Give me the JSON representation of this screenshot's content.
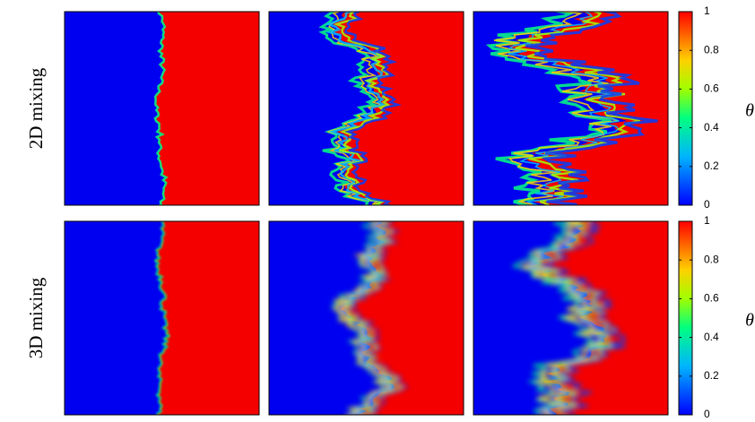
{
  "rows": [
    {
      "label": "2D mixing",
      "colorbar": {
        "label": "θ",
        "lim": [
          0,
          1
        ],
        "ticks": [
          0,
          0.2,
          0.4,
          0.6,
          0.8,
          1
        ]
      }
    },
    {
      "label": "3D mixing",
      "colorbar": {
        "label": "θ",
        "lim": [
          0,
          1
        ],
        "ticks": [
          0,
          0.2,
          0.4,
          0.6,
          0.8,
          1
        ]
      }
    }
  ]
}
